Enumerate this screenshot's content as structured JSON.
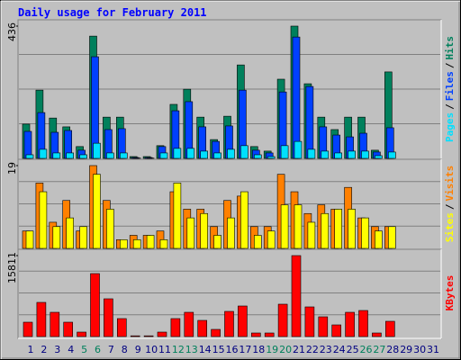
{
  "chart_data": [
    {
      "type": "bar",
      "title": "Daily usage for February 2011",
      "separator": "/",
      "ylim": [
        0,
        436
      ],
      "yticks": [
        436
      ],
      "series": [
        {
          "name": "Pages",
          "color": "#00e0ff",
          "values": [
            12,
            30,
            18,
            18,
            12,
            50,
            18,
            18,
            1,
            1,
            18,
            33,
            33,
            24,
            18,
            30,
            42,
            12,
            6,
            42,
            56,
            30,
            24,
            18,
            24,
            24,
            9,
            21,
            0,
            0,
            0
          ]
        },
        {
          "name": "Files",
          "color": "#0040ff",
          "values": [
            89,
            151,
            86,
            92,
            27,
            335,
            95,
            98,
            3,
            3,
            39,
            157,
            187,
            104,
            56,
            107,
            225,
            27,
            18,
            219,
            400,
            237,
            104,
            77,
            71,
            83,
            21,
            101,
            0,
            0,
            0
          ]
        },
        {
          "name": "Hits",
          "color": "#00805c",
          "values": [
            113,
            225,
            133,
            104,
            39,
            403,
            136,
            136,
            6,
            6,
            42,
            178,
            228,
            136,
            62,
            139,
            308,
            39,
            24,
            261,
            436,
            246,
            136,
            95,
            136,
            136,
            27,
            285,
            0,
            0,
            0
          ]
        }
      ]
    },
    {
      "type": "bar",
      "separator": "/",
      "ylim": [
        0,
        19
      ],
      "yticks": [
        19
      ],
      "series": [
        {
          "name": "Sites",
          "color": "#ffff00",
          "values": [
            4,
            13,
            5,
            7,
            5,
            17,
            9,
            2,
            2,
            3,
            2,
            15,
            7,
            8,
            3,
            7,
            13,
            3,
            4,
            10,
            10,
            6,
            8,
            9,
            9,
            7,
            4,
            5,
            0,
            0,
            0
          ]
        },
        {
          "name": "Visits",
          "color": "#ff8000",
          "values": [
            4,
            15,
            6,
            11,
            4,
            19,
            11,
            2,
            3,
            3,
            4,
            13,
            9,
            9,
            5,
            11,
            12,
            5,
            5,
            17,
            13,
            8,
            10,
            9,
            14,
            7,
            5,
            5,
            0,
            0,
            0
          ]
        }
      ]
    },
    {
      "type": "bar",
      "ylim": [
        0,
        15811
      ],
      "yticks": [
        15811
      ],
      "categories": [
        "1",
        "2",
        "3",
        "4",
        "5",
        "6",
        "7",
        "8",
        "9",
        "10",
        "11",
        "12",
        "13",
        "14",
        "15",
        "16",
        "17",
        "18",
        "19",
        "20",
        "21",
        "22",
        "23",
        "24",
        "25",
        "26",
        "27",
        "28",
        "29",
        "30",
        "31"
      ],
      "category_colors": [
        "#000080",
        "#000080",
        "#000080",
        "#000080",
        "#00805c",
        "#00805c",
        "#000080",
        "#000080",
        "#000080",
        "#000080",
        "#000080",
        "#00805c",
        "#00805c",
        "#000080",
        "#000080",
        "#000080",
        "#000080",
        "#000080",
        "#00805c",
        "#00805c",
        "#000080",
        "#000080",
        "#000080",
        "#000080",
        "#000080",
        "#00805c",
        "#00805c",
        "#000080",
        "#000080",
        "#000080",
        "#000080"
      ],
      "series": [
        {
          "name": "KBytes",
          "color": "#ff0000",
          "values": [
            2811,
            6676,
            4743,
            2811,
            878,
            12298,
            7379,
            3514,
            150,
            150,
            878,
            3514,
            4743,
            3162,
            1405,
            4919,
            5973,
            703,
            703,
            6324,
            15811,
            5797,
            3865,
            2284,
            4743,
            5095,
            703,
            2987,
            0,
            0,
            0
          ]
        }
      ]
    }
  ]
}
